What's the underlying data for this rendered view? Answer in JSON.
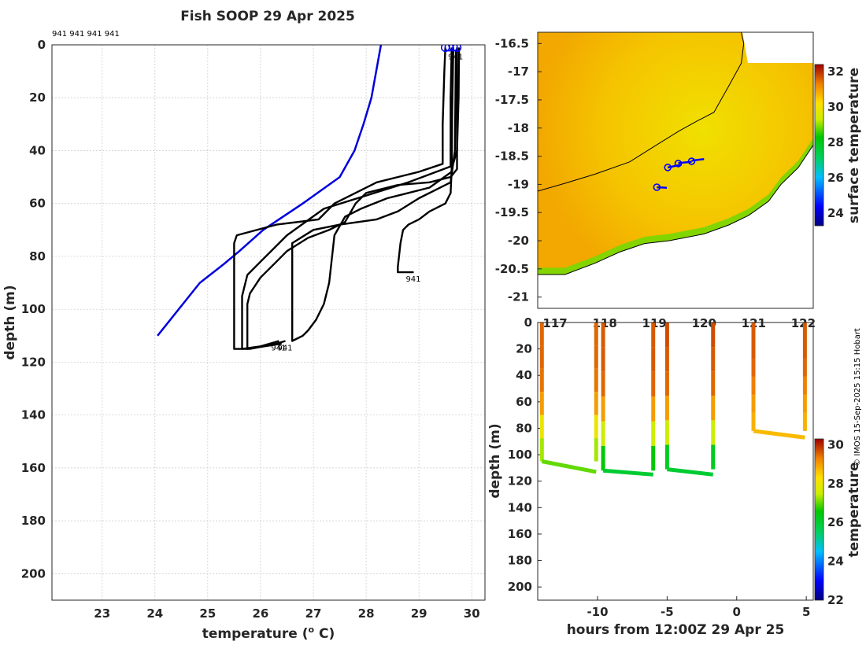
{
  "title": "Fish SOOP 29 Apr 2025",
  "credit": "© IMOS 15-Sep-2025 15:15 Hobart",
  "colors": {
    "profile": "#000000",
    "reference_profile": "#0000dd",
    "marker": "#0000ff",
    "land": "#ffffff",
    "coast": "#000000"
  },
  "chart_data": [
    {
      "id": "profiles",
      "type": "line",
      "title": "Fish SOOP 29 Apr 2025",
      "header_labels": "941 941 941 941",
      "xlabel": "temperature (o C)",
      "xlabel_main": "temperature (",
      "xlabel_sup": "o",
      "xlabel_end": " C)",
      "ylabel": "depth (m)",
      "xlim": [
        22.05,
        30.25
      ],
      "ylim": [
        0,
        210
      ],
      "y_reversed": true,
      "xticks": [
        23,
        24,
        25,
        26,
        27,
        28,
        29,
        30
      ],
      "yticks": [
        0,
        20,
        40,
        60,
        80,
        100,
        120,
        140,
        160,
        180,
        200
      ],
      "series": [
        {
          "name": "reference",
          "color": "blue",
          "points": [
            [
              28.28,
              0
            ],
            [
              28.1,
              20
            ],
            [
              27.95,
              30
            ],
            [
              27.78,
              40
            ],
            [
              27.5,
              50
            ],
            [
              26.8,
              60
            ],
            [
              26.05,
              70
            ],
            [
              25.6,
              78
            ],
            [
              25.3,
              83
            ],
            [
              24.85,
              90
            ],
            [
              24.05,
              110
            ]
          ]
        },
        {
          "name": "cast-1",
          "color": "black",
          "points": [
            [
              29.5,
              1
            ],
            [
              29.48,
              10
            ],
            [
              29.45,
              30
            ],
            [
              29.45,
              45
            ],
            [
              29.0,
              48
            ],
            [
              28.2,
              52
            ],
            [
              27.4,
              60
            ],
            [
              27.1,
              66
            ],
            [
              26.3,
              68
            ],
            [
              25.55,
              72
            ],
            [
              25.5,
              75
            ],
            [
              25.5,
              100
            ],
            [
              25.5,
              115
            ],
            [
              25.8,
              115
            ],
            [
              26.3,
              113
            ],
            [
              26.47,
              112
            ]
          ],
          "end_label": "941"
        },
        {
          "name": "cast-2",
          "color": "black",
          "points": [
            [
              29.62,
              1
            ],
            [
              29.6,
              20
            ],
            [
              29.6,
              46
            ],
            [
              28.8,
              52
            ],
            [
              27.2,
              62
            ],
            [
              26.5,
              72
            ],
            [
              26.0,
              82
            ],
            [
              25.75,
              87
            ],
            [
              25.65,
              95
            ],
            [
              25.65,
              115
            ],
            [
              26.0,
              114
            ],
            [
              26.35,
              112
            ]
          ],
          "end_label": "941"
        },
        {
          "name": "cast-3",
          "color": "black",
          "points": [
            [
              29.65,
              1
            ],
            [
              29.63,
              25
            ],
            [
              29.62,
              48
            ],
            [
              29.2,
              54
            ],
            [
              28.4,
              58
            ],
            [
              27.9,
              62
            ],
            [
              27.6,
              65
            ],
            [
              27.4,
              72
            ],
            [
              27.3,
              90
            ],
            [
              27.2,
              98
            ],
            [
              27.05,
              104
            ],
            [
              26.9,
              108
            ],
            [
              26.8,
              110
            ],
            [
              26.6,
              112
            ],
            [
              26.6,
              75
            ],
            [
              27.0,
              70
            ],
            [
              27.5,
              68
            ],
            [
              28.2,
              66
            ],
            [
              28.6,
              63
            ],
            [
              29.0,
              58
            ],
            [
              29.3,
              55
            ],
            [
              29.6,
              52
            ],
            [
              29.68,
              40
            ],
            [
              29.7,
              2
            ]
          ],
          "end_label": "941"
        },
        {
          "name": "cast-4",
          "color": "black",
          "points": [
            [
              29.72,
              1
            ],
            [
              29.72,
              20
            ],
            [
              29.72,
              47
            ],
            [
              29.6,
              50
            ],
            [
              29.2,
              52
            ],
            [
              28.6,
              53
            ],
            [
              28.0,
              56
            ],
            [
              27.8,
              60
            ],
            [
              27.6,
              67
            ],
            [
              27.3,
              70
            ],
            [
              26.9,
              73
            ],
            [
              26.5,
              78
            ],
            [
              26.3,
              82
            ],
            [
              26.0,
              88
            ],
            [
              25.8,
              94
            ],
            [
              25.75,
              98
            ],
            [
              25.75,
              115
            ],
            [
              26.4,
              113
            ]
          ]
        },
        {
          "name": "cast-5",
          "color": "black",
          "points": [
            [
              29.76,
              1
            ],
            [
              29.75,
              20
            ],
            [
              29.72,
              40
            ],
            [
              29.62,
              47
            ],
            [
              29.6,
              56
            ],
            [
              29.5,
              60
            ],
            [
              29.2,
              63
            ],
            [
              29.0,
              66
            ],
            [
              28.8,
              68
            ],
            [
              28.7,
              70
            ],
            [
              28.65,
              75
            ],
            [
              28.6,
              84
            ],
            [
              28.6,
              86
            ],
            [
              28.9,
              86
            ]
          ],
          "end_label": "941"
        }
      ],
      "start_markers": [
        [
          29.5,
          1
        ],
        [
          29.57,
          0.8
        ],
        [
          29.65,
          0.8
        ],
        [
          29.72,
          1
        ]
      ]
    },
    {
      "id": "map",
      "type": "heatmap",
      "xlim": [
        116.65,
        122.2
      ],
      "ylim": [
        -21.2,
        -16.3
      ],
      "xticks": [
        117,
        118,
        119,
        120,
        121,
        122
      ],
      "yticks": [
        -16.5,
        -17,
        -17.5,
        -18,
        -18.5,
        -19,
        -19.5,
        -20,
        -20.5,
        -21
      ],
      "yticklabels": [
        "-16.5",
        "-17",
        "-17.5",
        "-18",
        "-18.5",
        "-19",
        "-19.5",
        "-20",
        "-20.5",
        "-21"
      ],
      "colorbar": {
        "label": "surface temperature",
        "range": [
          23.3,
          32.4
        ],
        "ticks": [
          24,
          26,
          28,
          30,
          32
        ]
      },
      "isobath": [
        [
          116.65,
          -19.12
        ],
        [
          117.2,
          -18.98
        ],
        [
          117.8,
          -18.82
        ],
        [
          118.5,
          -18.6
        ],
        [
          119.1,
          -18.27
        ],
        [
          119.5,
          -18.05
        ],
        [
          119.85,
          -17.88
        ],
        [
          120.2,
          -17.72
        ],
        [
          120.5,
          -17.25
        ],
        [
          120.75,
          -16.85
        ],
        [
          120.8,
          -16.5
        ],
        [
          120.75,
          -16.3
        ]
      ],
      "coast": [
        [
          116.65,
          -20.6
        ],
        [
          117.2,
          -20.6
        ],
        [
          117.8,
          -20.4
        ],
        [
          118.3,
          -20.2
        ],
        [
          118.8,
          -20.05
        ],
        [
          119.3,
          -20.0
        ],
        [
          120.0,
          -19.88
        ],
        [
          120.5,
          -19.72
        ],
        [
          120.9,
          -19.55
        ],
        [
          121.3,
          -19.3
        ],
        [
          121.55,
          -19.0
        ],
        [
          121.9,
          -18.7
        ],
        [
          122.2,
          -18.3
        ]
      ],
      "tracks": [
        [
          [
            119.27,
            -18.7
          ],
          [
            119.55,
            -18.65
          ]
        ],
        [
          [
            119.48,
            -18.62
          ],
          [
            119.75,
            -18.6
          ]
        ],
        [
          [
            119.75,
            -18.58
          ],
          [
            120.0,
            -18.55
          ]
        ],
        [
          [
            119.05,
            -19.05
          ],
          [
            119.25,
            -19.06
          ]
        ]
      ],
      "track_markers": [
        [
          119.27,
          -18.7
        ],
        [
          119.48,
          -18.63
        ],
        [
          119.75,
          -18.59
        ],
        [
          119.05,
          -19.05
        ]
      ]
    },
    {
      "id": "timeseries",
      "type": "scatter",
      "xlabel": "hours from 12:00Z 29 Apr 25",
      "ylabel": "depth (m)",
      "xlim": [
        -14.3,
        5.5
      ],
      "ylim": [
        0,
        210
      ],
      "y_reversed": true,
      "xticks": [
        -10,
        -5,
        0,
        5
      ],
      "yticks": [
        0,
        20,
        40,
        60,
        80,
        100,
        120,
        140,
        160,
        180,
        200
      ],
      "yticklabels": [
        "0",
        "20",
        "40",
        "60",
        "80",
        "100",
        "120",
        "140",
        "160",
        "180",
        "200"
      ],
      "colorbar": {
        "label": "temperature",
        "range": [
          22,
          30.3
        ],
        "ticks": [
          22,
          24,
          26,
          28,
          30
        ]
      },
      "casts": [
        {
          "t0": -14.0,
          "bottom": 105,
          "t1": -10.1,
          "bottom_end": 113,
          "temps": [
            29.5,
            29.5,
            29.4,
            29.0,
            28.0,
            27.3,
            27.0
          ],
          "bottom_temp": 27.0
        },
        {
          "t0": -9.6,
          "bottom": 112,
          "t1": -6.0,
          "bottom_end": 115,
          "temps": [
            29.6,
            29.6,
            29.5,
            29.0,
            27.5,
            26.5,
            26.0
          ],
          "bottom_temp": 26.0
        },
        {
          "t0": -5.0,
          "bottom": 111,
          "t1": -1.7,
          "bottom_end": 115,
          "temps": [
            29.7,
            29.6,
            29.5,
            29.0,
            27.5,
            26.2,
            26.0
          ],
          "bottom_temp": 26.0
        },
        {
          "t0": 1.2,
          "bottom": 82,
          "t1": 4.9,
          "bottom_end": 87,
          "temps": [
            29.6,
            29.6,
            29.5,
            29.3,
            29.0,
            28.8,
            28.7
          ],
          "bottom_temp": 28.7
        }
      ]
    }
  ]
}
